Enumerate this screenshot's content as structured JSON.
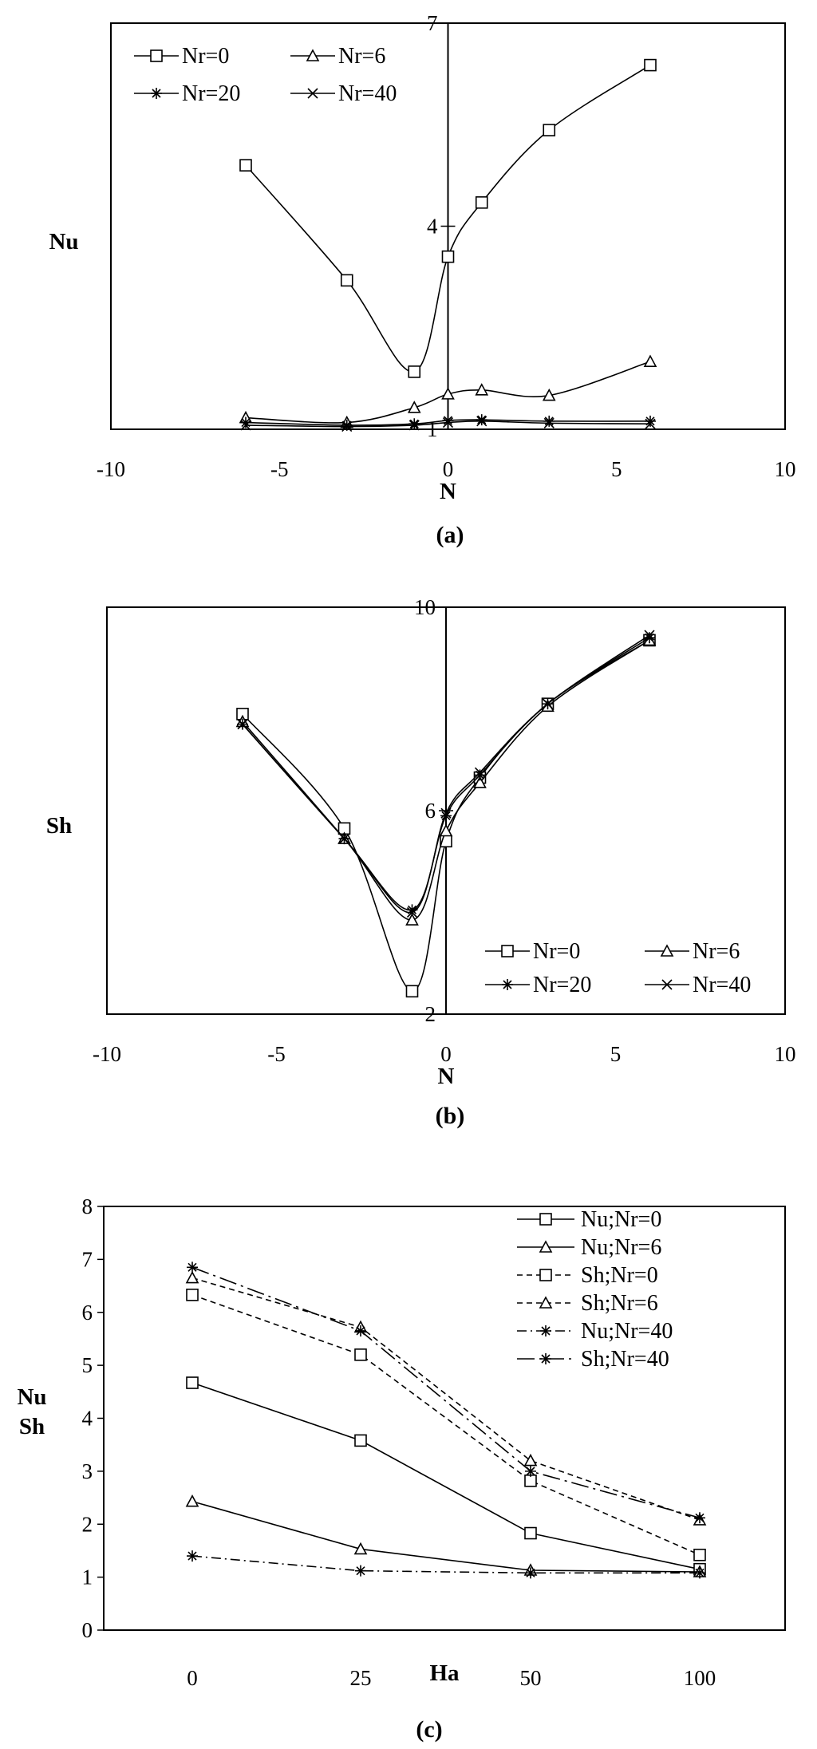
{
  "chart_data": [
    {
      "type": "line",
      "caption": "(a)",
      "xlabel": "N",
      "ylabel": "Nu",
      "xlim": [
        -10,
        10
      ],
      "ylim": [
        1,
        7
      ],
      "xticks": [
        -10,
        -5,
        0,
        5,
        10
      ],
      "yticks": [
        1,
        4,
        7
      ],
      "grid": false,
      "legend": "top-left",
      "x": [
        -6,
        -3,
        -1,
        0,
        1,
        3,
        6
      ],
      "series": [
        {
          "name": "Nr=0",
          "marker": "square",
          "values": [
            4.9,
            3.2,
            1.85,
            3.55,
            4.35,
            5.42,
            6.38
          ]
        },
        {
          "name": "Nr=6",
          "marker": "triangle",
          "values": [
            1.17,
            1.1,
            1.32,
            1.52,
            1.58,
            1.5,
            2.0
          ]
        },
        {
          "name": "Nr=20",
          "marker": "asterisk",
          "values": [
            1.1,
            1.06,
            1.08,
            1.13,
            1.14,
            1.12,
            1.12
          ]
        },
        {
          "name": "Nr=40",
          "marker": "cross",
          "values": [
            1.06,
            1.04,
            1.06,
            1.1,
            1.12,
            1.09,
            1.08
          ]
        }
      ]
    },
    {
      "type": "line",
      "caption": "(b)",
      "xlabel": "N",
      "ylabel": "Sh",
      "xlim": [
        -10,
        10
      ],
      "ylim": [
        2,
        10
      ],
      "xticks": [
        -10,
        -5,
        0,
        5,
        10
      ],
      "yticks": [
        2,
        6,
        10
      ],
      "grid": false,
      "legend": "bottom-right",
      "x": [
        -6,
        -3,
        -1,
        0,
        1,
        3,
        6
      ],
      "series": [
        {
          "name": "Nr=0",
          "marker": "square",
          "values": [
            7.9,
            5.65,
            2.45,
            5.4,
            6.65,
            8.1,
            9.35
          ]
        },
        {
          "name": "Nr=6",
          "marker": "triangle",
          "values": [
            7.75,
            5.45,
            3.85,
            5.6,
            6.55,
            8.05,
            9.35
          ]
        },
        {
          "name": "Nr=20",
          "marker": "asterisk",
          "values": [
            7.7,
            5.45,
            4.05,
            5.9,
            6.7,
            8.1,
            9.4
          ]
        },
        {
          "name": "Nr=40",
          "marker": "cross",
          "values": [
            7.7,
            5.45,
            4.0,
            5.95,
            6.75,
            8.1,
            9.45
          ]
        }
      ]
    },
    {
      "type": "line",
      "caption": "(c)",
      "xlabel": "Ha",
      "ylabel": [
        "Nu",
        "Sh"
      ],
      "categories": [
        "0",
        "25",
        "50",
        "100"
      ],
      "ylim": [
        0,
        8
      ],
      "yticks": [
        0,
        1,
        2,
        3,
        4,
        5,
        6,
        7,
        8
      ],
      "grid": false,
      "legend": "top-right",
      "series": [
        {
          "name": "Nu;Nr=0",
          "marker": "square",
          "dash": "solid",
          "values": [
            4.67,
            3.58,
            1.83,
            1.15
          ]
        },
        {
          "name": "Nu;Nr=6",
          "marker": "triangle",
          "dash": "solid",
          "values": [
            2.43,
            1.53,
            1.13,
            1.1
          ]
        },
        {
          "name": "Sh;Nr=0",
          "marker": "square",
          "dash": "dashed",
          "values": [
            6.33,
            5.2,
            2.82,
            1.42
          ]
        },
        {
          "name": "Sh;Nr=6",
          "marker": "triangle",
          "dash": "dashed",
          "values": [
            6.65,
            5.72,
            3.2,
            2.08
          ]
        },
        {
          "name": "Nu;Nr=40",
          "marker": "asterisk",
          "dash": "dashdot",
          "values": [
            1.4,
            1.12,
            1.08,
            1.08
          ]
        },
        {
          "name": "Sh;Nr=40",
          "marker": "asterisk",
          "dash": "longdashdot",
          "values": [
            6.85,
            5.65,
            3.0,
            2.12
          ]
        }
      ]
    }
  ]
}
